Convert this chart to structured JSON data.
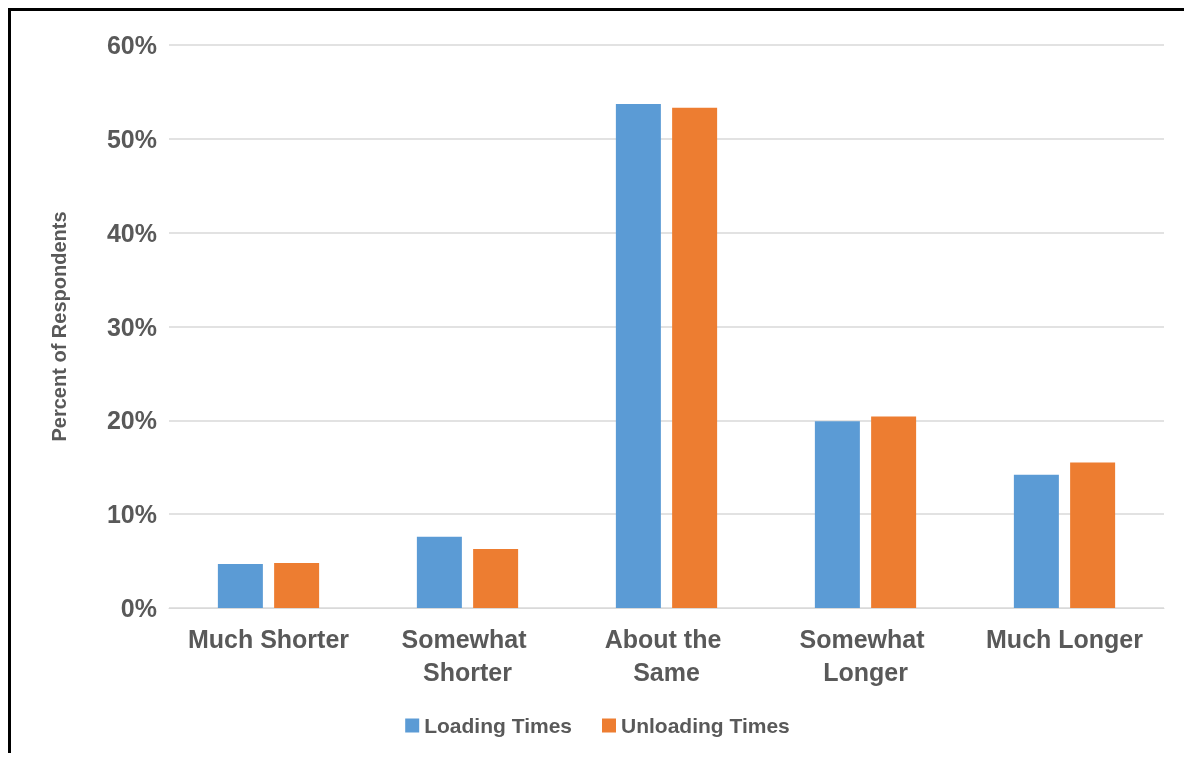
{
  "chart_data": {
    "type": "bar",
    "ylabel": "Percent of Respondents",
    "categories": [
      "Much Shorter",
      "Somewhat Shorter",
      "About the Same",
      "Somewhat Longer",
      "Much Longer"
    ],
    "series": [
      {
        "name": "Loading Times",
        "color": "#5b9bd5",
        "values": [
          4.7,
          7.6,
          53.7,
          19.9,
          14.2
        ]
      },
      {
        "name": "Unloading Times",
        "color": "#ed7d31",
        "values": [
          4.8,
          6.3,
          53.3,
          20.4,
          15.5
        ]
      }
    ],
    "ylim": [
      0,
      60
    ],
    "yticks": [
      {
        "value": 0,
        "label": "0%"
      },
      {
        "value": 10,
        "label": "10%"
      },
      {
        "value": 20,
        "label": "20%"
      },
      {
        "value": 30,
        "label": "30%"
      },
      {
        "value": 40,
        "label": "40%"
      },
      {
        "value": 50,
        "label": "50%"
      },
      {
        "value": 60,
        "label": "60%"
      }
    ],
    "grid": "y",
    "legend": "bottom"
  }
}
